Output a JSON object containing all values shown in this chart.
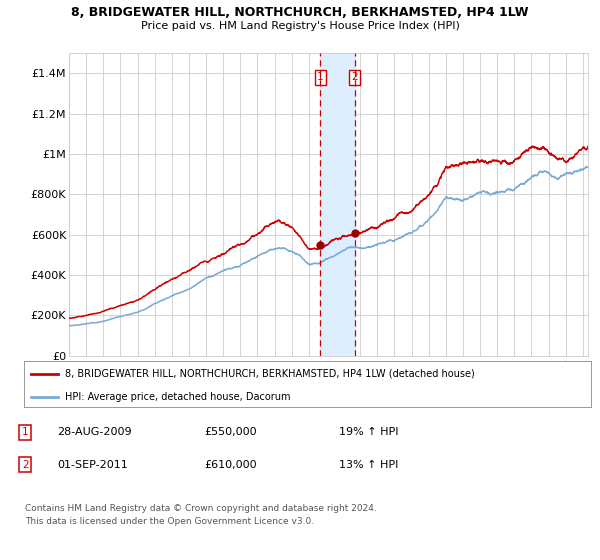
{
  "title": "8, BRIDGEWATER HILL, NORTHCHURCH, BERKHAMSTED, HP4 1LW",
  "subtitle": "Price paid vs. HM Land Registry's House Price Index (HPI)",
  "red_line_label": "8, BRIDGEWATER HILL, NORTHCHURCH, BERKHAMSTED, HP4 1LW (detached house)",
  "blue_line_label": "HPI: Average price, detached house, Dacorum",
  "transaction1_date": "28-AUG-2009",
  "transaction1_price": 550000,
  "transaction1_hpi": "19% ↑ HPI",
  "transaction1_year": 2009.66,
  "transaction2_date": "01-SEP-2011",
  "transaction2_price": 610000,
  "transaction2_hpi": "13% ↑ HPI",
  "transaction2_year": 2011.67,
  "ylabel_ticks": [
    "£0",
    "£200K",
    "£400K",
    "£600K",
    "£800K",
    "£1M",
    "£1.2M",
    "£1.4M"
  ],
  "ylabel_values": [
    0,
    200000,
    400000,
    600000,
    800000,
    1000000,
    1200000,
    1400000
  ],
  "ylim": [
    0,
    1500000
  ],
  "xlim_start": 1995.0,
  "xlim_end": 2025.3,
  "background_color": "#ffffff",
  "grid_color": "#cccccc",
  "red_color": "#cc0000",
  "blue_color": "#7aaad4",
  "shade_color": "#ddeeff",
  "copyright_text": "Contains HM Land Registry data © Crown copyright and database right 2024.\nThis data is licensed under the Open Government Licence v3.0."
}
